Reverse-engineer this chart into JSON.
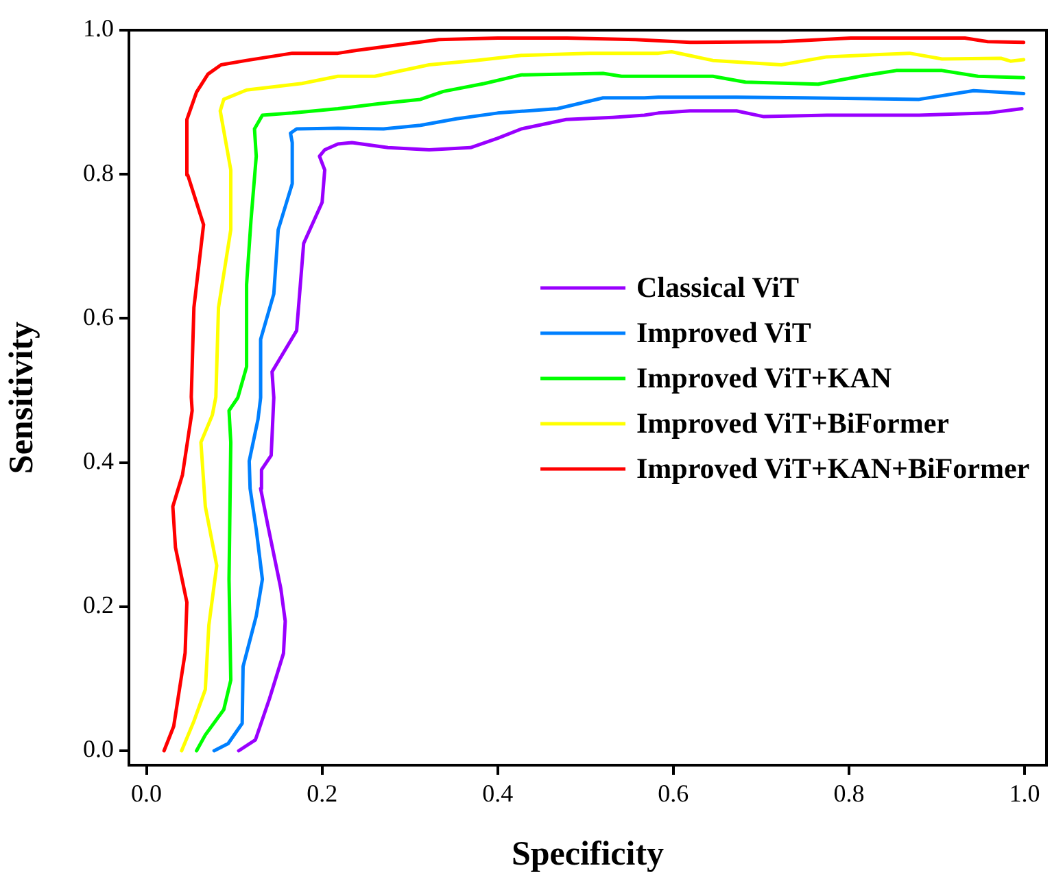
{
  "chart_data": {
    "type": "line",
    "xlabel": "Specificity",
    "ylabel": "Sensitivity",
    "xlim": [
      -0.02,
      1.025
    ],
    "ylim": [
      -0.02,
      1.0
    ],
    "xticks": [
      {
        "value": 0,
        "label": "0.0"
      },
      {
        "value": 0.2,
        "label": "0.2"
      },
      {
        "value": 0.4,
        "label": "0.4"
      },
      {
        "value": 0.6,
        "label": "0.6"
      },
      {
        "value": 0.8,
        "label": "0.8"
      },
      {
        "value": 1,
        "label": "1.0"
      }
    ],
    "yticks": [
      {
        "value": 0,
        "label": "0.0"
      },
      {
        "value": 0.2,
        "label": "0.2"
      },
      {
        "value": 0.4,
        "label": "0.4"
      },
      {
        "value": 0.6,
        "label": "0.6"
      },
      {
        "value": 0.8,
        "label": "0.8"
      },
      {
        "value": 1,
        "label": "1.0"
      }
    ],
    "grid": false,
    "legend": "right",
    "marker": "none",
    "line_style": "solid",
    "series": [
      {
        "name": "Classical ViT",
        "color": "#9900ff",
        "x": [
          0.105,
          0.124,
          0.14,
          0.156,
          0.158,
          0.153,
          0.138,
          0.13,
          0.131,
          0.142,
          0.145,
          0.143,
          0.171,
          0.179,
          0.2,
          0.203,
          0.197,
          0.203,
          0.218,
          0.234,
          0.275,
          0.322,
          0.369,
          0.4,
          0.427,
          0.478,
          0.531,
          0.567,
          0.583,
          0.619,
          0.672,
          0.703,
          0.775,
          0.88,
          0.958,
          0.997
        ],
        "values": [
          0,
          0.015,
          0.072,
          0.135,
          0.18,
          0.225,
          0.314,
          0.364,
          0.39,
          0.41,
          0.49,
          0.526,
          0.583,
          0.704,
          0.761,
          0.806,
          0.825,
          0.834,
          0.842,
          0.844,
          0.837,
          0.834,
          0.837,
          0.85,
          0.863,
          0.876,
          0.879,
          0.882,
          0.885,
          0.888,
          0.888,
          0.88,
          0.882,
          0.882,
          0.885,
          0.891
        ]
      },
      {
        "name": "Improved ViT",
        "color": "#0080ff",
        "x": [
          0.077,
          0.093,
          0.109,
          0.11,
          0.125,
          0.132,
          0.125,
          0.118,
          0.117,
          0.127,
          0.13,
          0.13,
          0.145,
          0.15,
          0.166,
          0.166,
          0.164,
          0.171,
          0.218,
          0.27,
          0.312,
          0.353,
          0.4,
          0.468,
          0.52,
          0.567,
          0.583,
          0.672,
          0.75,
          0.88,
          0.942,
          0.999
        ],
        "values": [
          0,
          0.01,
          0.038,
          0.117,
          0.187,
          0.238,
          0.307,
          0.364,
          0.402,
          0.46,
          0.49,
          0.571,
          0.634,
          0.723,
          0.787,
          0.844,
          0.857,
          0.863,
          0.864,
          0.863,
          0.868,
          0.877,
          0.885,
          0.891,
          0.906,
          0.906,
          0.907,
          0.907,
          0.906,
          0.904,
          0.916,
          0.912
        ]
      },
      {
        "name": "Improved ViT+KAN",
        "color": "#00ff00",
        "x": [
          0.057,
          0.067,
          0.088,
          0.096,
          0.094,
          0.096,
          0.094,
          0.104,
          0.114,
          0.114,
          0.119,
          0.125,
          0.123,
          0.132,
          0.166,
          0.218,
          0.265,
          0.312,
          0.338,
          0.385,
          0.427,
          0.479,
          0.52,
          0.541,
          0.583,
          0.645,
          0.682,
          0.765,
          0.817,
          0.854,
          0.906,
          0.947,
          0.999
        ],
        "values": [
          0,
          0.022,
          0.057,
          0.098,
          0.238,
          0.428,
          0.472,
          0.49,
          0.533,
          0.647,
          0.736,
          0.825,
          0.863,
          0.882,
          0.885,
          0.891,
          0.898,
          0.904,
          0.915,
          0.926,
          0.938,
          0.939,
          0.94,
          0.936,
          0.936,
          0.936,
          0.928,
          0.925,
          0.937,
          0.944,
          0.944,
          0.936,
          0.934
        ]
      },
      {
        "name": "Improved ViT+BiFormer",
        "color": "#ffff00",
        "x": [
          0.04,
          0.054,
          0.067,
          0.071,
          0.08,
          0.067,
          0.062,
          0.075,
          0.079,
          0.082,
          0.096,
          0.096,
          0.084,
          0.088,
          0.114,
          0.177,
          0.218,
          0.26,
          0.322,
          0.375,
          0.427,
          0.505,
          0.583,
          0.598,
          0.645,
          0.723,
          0.775,
          0.869,
          0.906,
          0.973,
          0.984,
          0.999
        ],
        "values": [
          0,
          0.041,
          0.085,
          0.174,
          0.257,
          0.339,
          0.428,
          0.466,
          0.491,
          0.615,
          0.723,
          0.806,
          0.888,
          0.904,
          0.917,
          0.926,
          0.936,
          0.936,
          0.952,
          0.958,
          0.965,
          0.968,
          0.968,
          0.97,
          0.958,
          0.952,
          0.963,
          0.968,
          0.96,
          0.961,
          0.957,
          0.959
        ]
      },
      {
        "name": "Improved ViT+KAN+BiFormer",
        "color": "#ff0000",
        "x": [
          0.02,
          0.031,
          0.044,
          0.046,
          0.033,
          0.03,
          0.041,
          0.052,
          0.051,
          0.054,
          0.065,
          0.047,
          0.046,
          0.057,
          0.07,
          0.085,
          0.114,
          0.166,
          0.218,
          0.239,
          0.27,
          0.333,
          0.4,
          0.479,
          0.557,
          0.619,
          0.723,
          0.802,
          0.932,
          0.958,
          0.999
        ],
        "values": [
          0,
          0.034,
          0.136,
          0.206,
          0.282,
          0.339,
          0.383,
          0.472,
          0.491,
          0.615,
          0.73,
          0.799,
          0.876,
          0.914,
          0.939,
          0.952,
          0.958,
          0.968,
          0.968,
          0.972,
          0.977,
          0.987,
          0.989,
          0.989,
          0.987,
          0.983,
          0.984,
          0.989,
          0.989,
          0.984,
          0.983
        ]
      }
    ]
  }
}
